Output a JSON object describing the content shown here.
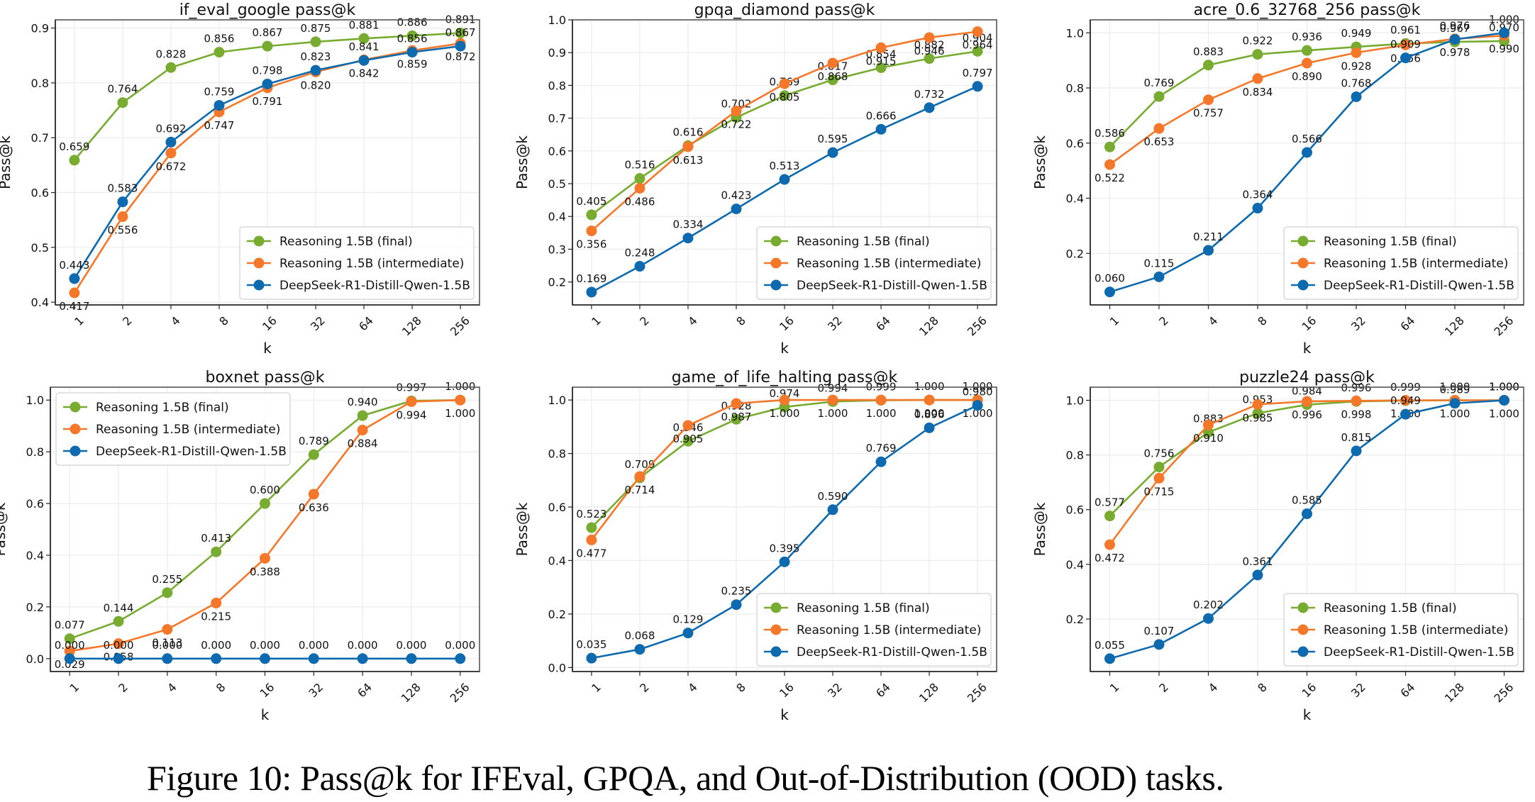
{
  "caption": "Figure 10: Pass@k for IFEval, GPQA, and Out-of-Distribution (OOD) tasks.",
  "colors": {
    "final": "#77ac30",
    "intermediate": "#f5782a",
    "deepseek": "#0e6aae",
    "grid": "#ebebeb",
    "frame": "#555555"
  },
  "chart_data": [
    {
      "type": "line",
      "title": "if_eval_google pass@k",
      "xlabel": "k",
      "ylabel": "Pass@k",
      "x": [
        "1",
        "2",
        "4",
        "8",
        "16",
        "32",
        "64",
        "128",
        "256"
      ],
      "ylim": [
        0.395,
        0.915
      ],
      "yticks": [
        0.4,
        0.5,
        0.6,
        0.7,
        0.8,
        0.9
      ],
      "ytick_labels": [
        "0.4",
        "0.5",
        "0.6",
        "0.7",
        "0.8",
        "0.9"
      ],
      "grid": true,
      "legend_position": "bottom-right",
      "series": [
        {
          "key": "final",
          "name": "Reasoning 1.5B (final)",
          "values": [
            0.659,
            0.764,
            0.828,
            0.856,
            0.867,
            0.875,
            0.881,
            0.886,
            0.891
          ],
          "label_pos": "above"
        },
        {
          "key": "intermediate",
          "name": "Reasoning 1.5B (intermediate)",
          "values": [
            0.417,
            0.556,
            0.672,
            0.747,
            0.791,
            0.82,
            0.842,
            0.859,
            0.872
          ],
          "label_pos": "below"
        },
        {
          "key": "deepseek",
          "name": "DeepSeek-R1-Distill-Qwen-1.5B",
          "values": [
            0.443,
            0.583,
            0.692,
            0.759,
            0.798,
            0.823,
            0.841,
            0.856,
            0.867
          ],
          "label_pos": "above"
        }
      ]
    },
    {
      "type": "line",
      "title": "gpqa_diamond pass@k",
      "xlabel": "k",
      "ylabel": "Pass@k",
      "x": [
        "1",
        "2",
        "4",
        "8",
        "16",
        "32",
        "64",
        "128",
        "256"
      ],
      "ylim": [
        0.13,
        1.0
      ],
      "yticks": [
        0.2,
        0.3,
        0.4,
        0.5,
        0.6,
        0.7,
        0.8,
        0.9,
        1.0
      ],
      "ytick_labels": [
        "0.2",
        "0.3",
        "0.4",
        "0.5",
        "0.6",
        "0.7",
        "0.8",
        "0.9",
        "1.0"
      ],
      "grid": true,
      "legend_position": "bottom-right",
      "series": [
        {
          "key": "final",
          "name": "Reasoning 1.5B (final)",
          "values": [
            0.405,
            0.516,
            0.616,
            0.702,
            0.769,
            0.817,
            0.854,
            0.882,
            0.904
          ],
          "label_pos": "above"
        },
        {
          "key": "intermediate",
          "name": "Reasoning 1.5B (intermediate)",
          "values": [
            0.356,
            0.486,
            0.613,
            0.722,
            0.805,
            0.868,
            0.915,
            0.946,
            0.964
          ],
          "label_pos": "below"
        },
        {
          "key": "deepseek",
          "name": "DeepSeek-R1-Distill-Qwen-1.5B",
          "values": [
            0.169,
            0.248,
            0.334,
            0.423,
            0.513,
            0.595,
            0.666,
            0.732,
            0.797
          ],
          "label_pos": "above"
        }
      ]
    },
    {
      "type": "line",
      "title": "acre_0.6_32768_256 pass@k",
      "xlabel": "k",
      "ylabel": "Pass@k",
      "x": [
        "1",
        "2",
        "4",
        "8",
        "16",
        "32",
        "64",
        "128",
        "256"
      ],
      "ylim": [
        0.013,
        1.047
      ],
      "yticks": [
        0.2,
        0.4,
        0.6,
        0.8,
        1.0
      ],
      "ytick_labels": [
        "0.2",
        "0.4",
        "0.6",
        "0.8",
        "1.0"
      ],
      "grid": true,
      "legend_position": "bottom-right",
      "series": [
        {
          "key": "final",
          "name": "Reasoning 1.5B (final)",
          "values": [
            0.586,
            0.769,
            0.883,
            0.922,
            0.936,
            0.949,
            0.961,
            0.967,
            0.97
          ],
          "label_pos": "above"
        },
        {
          "key": "intermediate",
          "name": "Reasoning 1.5B (intermediate)",
          "values": [
            0.522,
            0.653,
            0.757,
            0.834,
            0.89,
            0.928,
            0.956,
            0.978,
            0.99
          ],
          "label_pos": "below"
        },
        {
          "key": "deepseek",
          "name": "DeepSeek-R1-Distill-Qwen-1.5B",
          "values": [
            0.06,
            0.115,
            0.211,
            0.364,
            0.566,
            0.768,
            0.909,
            0.976,
            1.0
          ],
          "label_pos": "above"
        }
      ]
    },
    {
      "type": "line",
      "title": "boxnet pass@k",
      "xlabel": "k",
      "ylabel": "Pass@k",
      "x": [
        "1",
        "2",
        "4",
        "8",
        "16",
        "32",
        "64",
        "128",
        "256"
      ],
      "ylim": [
        -0.05,
        1.05
      ],
      "yticks": [
        0.0,
        0.2,
        0.4,
        0.6,
        0.8,
        1.0
      ],
      "ytick_labels": [
        "0.0",
        "0.2",
        "0.4",
        "0.6",
        "0.8",
        "1.0"
      ],
      "grid": true,
      "legend_position": "top-left",
      "series": [
        {
          "key": "final",
          "name": "Reasoning 1.5B (final)",
          "values": [
            0.077,
            0.144,
            0.255,
            0.413,
            0.6,
            0.789,
            0.94,
            0.997,
            1.0
          ],
          "label_pos": "above"
        },
        {
          "key": "intermediate",
          "name": "Reasoning 1.5B (intermediate)",
          "values": [
            0.029,
            0.058,
            0.113,
            0.215,
            0.388,
            0.636,
            0.884,
            0.994,
            1.0
          ],
          "label_pos": "below"
        },
        {
          "key": "deepseek",
          "name": "DeepSeek-R1-Distill-Qwen-1.5B",
          "values": [
            0.0,
            0.0,
            0.0,
            0.0,
            0.0,
            0.0,
            0.0,
            0.0,
            0.0
          ],
          "label_pos": "above"
        }
      ]
    },
    {
      "type": "line",
      "title": "game_of_life_halting pass@k",
      "xlabel": "k",
      "ylabel": "Pass@k",
      "x": [
        "1",
        "2",
        "4",
        "8",
        "16",
        "32",
        "64",
        "128",
        "256"
      ],
      "ylim": [
        -0.015,
        1.048
      ],
      "yticks": [
        0.0,
        0.2,
        0.4,
        0.6,
        0.8,
        1.0
      ],
      "ytick_labels": [
        "0.0",
        "0.2",
        "0.4",
        "0.6",
        "0.8",
        "1.0"
      ],
      "grid": true,
      "legend_position": "bottom-right",
      "series": [
        {
          "key": "final",
          "name": "Reasoning 1.5B (final)",
          "values": [
            0.523,
            0.709,
            0.846,
            0.928,
            0.974,
            0.994,
            0.999,
            1.0,
            1.0
          ],
          "label_pos": "above"
        },
        {
          "key": "intermediate",
          "name": "Reasoning 1.5B (intermediate)",
          "values": [
            0.477,
            0.714,
            0.905,
            0.987,
            1.0,
            1.0,
            1.0,
            1.0,
            1.0
          ],
          "label_pos": "below"
        },
        {
          "key": "deepseek",
          "name": "DeepSeek-R1-Distill-Qwen-1.5B",
          "values": [
            0.035,
            0.068,
            0.129,
            0.235,
            0.395,
            0.59,
            0.769,
            0.896,
            0.98
          ],
          "label_pos": "above"
        }
      ]
    },
    {
      "type": "line",
      "title": "puzzle24 pass@k",
      "xlabel": "k",
      "ylabel": "Pass@k",
      "x": [
        "1",
        "2",
        "4",
        "8",
        "16",
        "32",
        "64",
        "128",
        "256"
      ],
      "ylim": [
        0.008,
        1.048
      ],
      "yticks": [
        0.2,
        0.4,
        0.6,
        0.8,
        1.0
      ],
      "ytick_labels": [
        "0.2",
        "0.4",
        "0.6",
        "0.8",
        "1.0"
      ],
      "grid": true,
      "legend_position": "bottom-right",
      "series": [
        {
          "key": "final",
          "name": "Reasoning 1.5B (final)",
          "values": [
            0.577,
            0.756,
            0.883,
            0.953,
            0.984,
            0.996,
            0.999,
            1.0,
            1.0
          ],
          "label_pos": "above"
        },
        {
          "key": "intermediate",
          "name": "Reasoning 1.5B (intermediate)",
          "values": [
            0.472,
            0.715,
            0.91,
            0.985,
            0.996,
            0.998,
            1.0,
            1.0,
            1.0
          ],
          "label_pos": "below"
        },
        {
          "key": "deepseek",
          "name": "DeepSeek-R1-Distill-Qwen-1.5B",
          "values": [
            0.055,
            0.107,
            0.202,
            0.361,
            0.585,
            0.815,
            0.949,
            0.989,
            1.0
          ],
          "label_pos": "above"
        }
      ]
    }
  ]
}
